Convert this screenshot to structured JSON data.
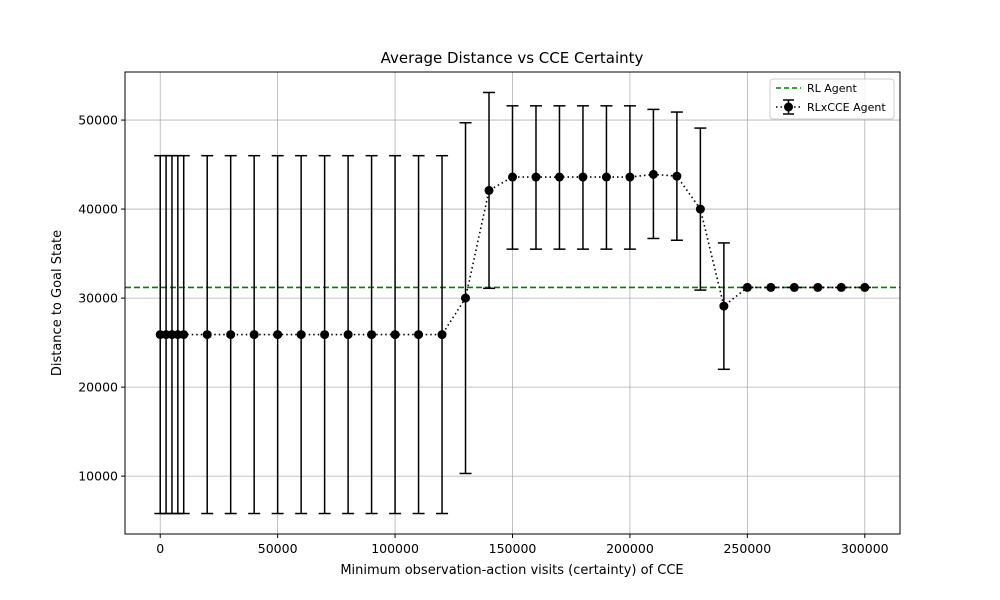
{
  "chart_data": {
    "type": "line",
    "title": "Average Distance vs CCE Certainty",
    "xlabel": "Minimum observation-action visits (certainty) of CCE",
    "ylabel": "Distance to Goal State",
    "xlim": [
      -15000,
      315000
    ],
    "ylim": [
      3500,
      55400
    ],
    "x_ticks": [
      0,
      50000,
      100000,
      150000,
      200000,
      250000,
      300000
    ],
    "y_ticks": [
      10000,
      20000,
      30000,
      40000,
      50000
    ],
    "grid": true,
    "legend_position": "top-right",
    "reference_line": {
      "name": "RL Agent",
      "y": 31200,
      "color": "#008000",
      "style": "dashed"
    },
    "series": [
      {
        "name": "RLxCCE Agent",
        "color": "#000000",
        "style": "dotted",
        "marker": "circle",
        "points": [
          {
            "x": 0,
            "y": 25900,
            "err_low": 5800,
            "err_high": 46000
          },
          {
            "x": 2500,
            "y": 25900,
            "err_low": 5800,
            "err_high": 46000
          },
          {
            "x": 5000,
            "y": 25900,
            "err_low": 5800,
            "err_high": 46000
          },
          {
            "x": 7500,
            "y": 25900,
            "err_low": 5800,
            "err_high": 46000
          },
          {
            "x": 10000,
            "y": 25900,
            "err_low": 5800,
            "err_high": 46000
          },
          {
            "x": 20000,
            "y": 25900,
            "err_low": 5800,
            "err_high": 46000
          },
          {
            "x": 30000,
            "y": 25900,
            "err_low": 5800,
            "err_high": 46000
          },
          {
            "x": 40000,
            "y": 25900,
            "err_low": 5800,
            "err_high": 46000
          },
          {
            "x": 50000,
            "y": 25900,
            "err_low": 5800,
            "err_high": 46000
          },
          {
            "x": 60000,
            "y": 25900,
            "err_low": 5800,
            "err_high": 46000
          },
          {
            "x": 70000,
            "y": 25900,
            "err_low": 5800,
            "err_high": 46000
          },
          {
            "x": 80000,
            "y": 25900,
            "err_low": 5800,
            "err_high": 46000
          },
          {
            "x": 90000,
            "y": 25900,
            "err_low": 5800,
            "err_high": 46000
          },
          {
            "x": 100000,
            "y": 25900,
            "err_low": 5800,
            "err_high": 46000
          },
          {
            "x": 110000,
            "y": 25900,
            "err_low": 5800,
            "err_high": 46000
          },
          {
            "x": 120000,
            "y": 25900,
            "err_low": 5800,
            "err_high": 46000
          },
          {
            "x": 130000,
            "y": 30000,
            "err_low": 10300,
            "err_high": 49700
          },
          {
            "x": 140000,
            "y": 42100,
            "err_low": 31100,
            "err_high": 53100
          },
          {
            "x": 150000,
            "y": 43600,
            "err_low": 35500,
            "err_high": 51600
          },
          {
            "x": 160000,
            "y": 43600,
            "err_low": 35500,
            "err_high": 51600
          },
          {
            "x": 170000,
            "y": 43600,
            "err_low": 35500,
            "err_high": 51600
          },
          {
            "x": 180000,
            "y": 43600,
            "err_low": 35500,
            "err_high": 51600
          },
          {
            "x": 190000,
            "y": 43600,
            "err_low": 35500,
            "err_high": 51600
          },
          {
            "x": 200000,
            "y": 43600,
            "err_low": 35500,
            "err_high": 51600
          },
          {
            "x": 210000,
            "y": 43900,
            "err_low": 36700,
            "err_high": 51200
          },
          {
            "x": 220000,
            "y": 43700,
            "err_low": 36500,
            "err_high": 50900
          },
          {
            "x": 230000,
            "y": 40000,
            "err_low": 30900,
            "err_high": 49100
          },
          {
            "x": 240000,
            "y": 29100,
            "err_low": 22000,
            "err_high": 36200
          },
          {
            "x": 250000,
            "y": 31200,
            "err_low": 31200,
            "err_high": 31200
          },
          {
            "x": 260000,
            "y": 31200,
            "err_low": 31200,
            "err_high": 31200
          },
          {
            "x": 270000,
            "y": 31200,
            "err_low": 31200,
            "err_high": 31200
          },
          {
            "x": 280000,
            "y": 31200,
            "err_low": 31200,
            "err_high": 31200
          },
          {
            "x": 290000,
            "y": 31200,
            "err_low": 31200,
            "err_high": 31200
          },
          {
            "x": 300000,
            "y": 31200,
            "err_low": 31200,
            "err_high": 31200
          }
        ]
      }
    ]
  }
}
